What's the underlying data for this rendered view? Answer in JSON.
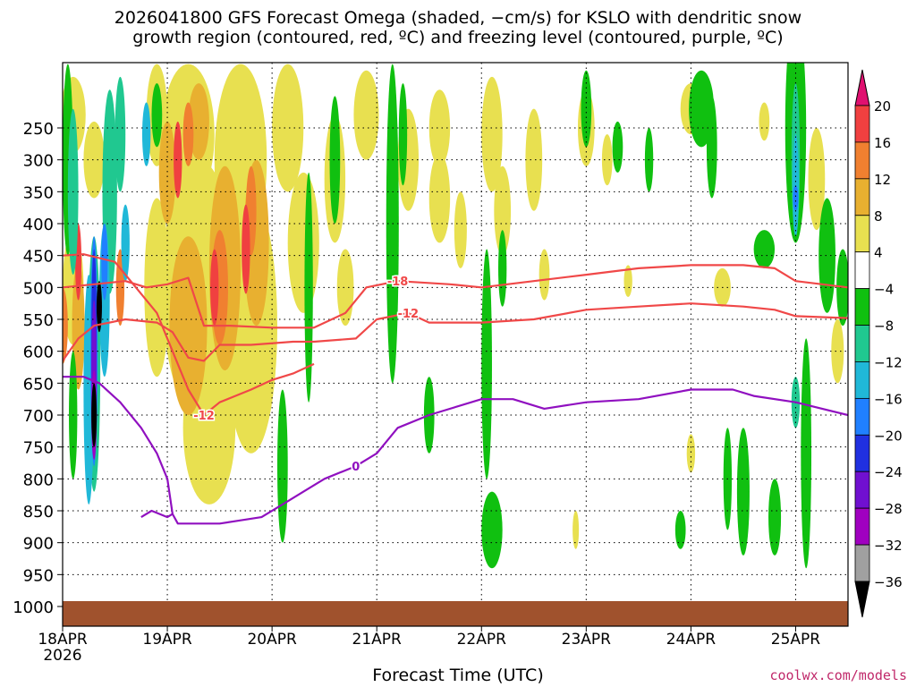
{
  "title_line1": "2026041800 GFS Forecast Omega (shaded, −cm/s) for KSLO with dendritic snow",
  "title_line2": "growth region (contoured, red, ºC) and freezing level (contoured, purple, ºC)",
  "credit": "coolwx.com/models",
  "chart_data": {
    "type": "heatmap",
    "xlabel": "Forecast Time (UTC)",
    "ylabel": "",
    "x_ticks": [
      "18APR",
      "19APR",
      "20APR",
      "21APR",
      "22APR",
      "23APR",
      "24APR",
      "25APR"
    ],
    "x_tick_sublabel": "2026",
    "xlim_days": [
      18,
      25.5
    ],
    "y_ticks": [
      250,
      300,
      350,
      400,
      450,
      500,
      550,
      600,
      650,
      700,
      750,
      800,
      850,
      900,
      950,
      1000
    ],
    "ylim": [
      200,
      1020
    ],
    "colorbar": {
      "labels": [
        "20",
        "16",
        "12",
        "8",
        "4",
        "−4",
        "−8",
        "−12",
        "−16",
        "−20",
        "−24",
        "−28",
        "−32",
        "−36"
      ],
      "colors": [
        "#e01070",
        "#f04040",
        "#f08030",
        "#e8b030",
        "#e8e050",
        "#ffffff",
        "#10c010",
        "#20c890",
        "#20b8d8",
        "#2080ff",
        "#2030e0",
        "#7010d0",
        "#a000c0",
        "#a0a0a0",
        "#000000"
      ]
    },
    "contours": [
      {
        "label": "-18",
        "color": "#f04848",
        "points": [
          [
            18.0,
            500
          ],
          [
            18.3,
            495
          ],
          [
            18.6,
            490
          ],
          [
            18.8,
            500
          ],
          [
            19.0,
            495
          ],
          [
            19.2,
            485
          ],
          [
            19.35,
            560
          ],
          [
            19.6,
            560
          ],
          [
            20.0,
            563
          ],
          [
            20.4,
            563
          ],
          [
            20.7,
            540
          ],
          [
            20.9,
            500
          ],
          [
            21.2,
            490
          ],
          [
            21.7,
            495
          ],
          [
            22.0,
            500
          ],
          [
            22.5,
            490
          ],
          [
            23.0,
            480
          ],
          [
            23.5,
            470
          ],
          [
            24.0,
            465
          ],
          [
            24.5,
            465
          ],
          [
            24.8,
            470
          ],
          [
            25.0,
            490
          ],
          [
            25.5,
            500
          ]
        ]
      },
      {
        "label": "-12",
        "color": "#f04848",
        "points": [
          [
            18.0,
            615
          ],
          [
            18.15,
            580
          ],
          [
            18.3,
            560
          ],
          [
            18.6,
            550
          ],
          [
            18.9,
            555
          ],
          [
            19.05,
            570
          ],
          [
            19.2,
            610
          ],
          [
            19.35,
            615
          ],
          [
            19.5,
            590
          ],
          [
            19.8,
            590
          ],
          [
            20.2,
            585
          ],
          [
            20.4,
            585
          ],
          [
            20.8,
            580
          ],
          [
            21.0,
            550
          ],
          [
            21.3,
            540
          ],
          [
            21.5,
            555
          ],
          [
            21.7,
            555
          ],
          [
            22.0,
            555
          ],
          [
            22.5,
            550
          ],
          [
            23.0,
            535
          ],
          [
            23.5,
            530
          ],
          [
            24.0,
            525
          ],
          [
            24.5,
            530
          ],
          [
            24.8,
            535
          ],
          [
            25.0,
            545
          ],
          [
            25.5,
            548
          ]
        ]
      },
      {
        "label": "-12",
        "color": "#f04848",
        "points": [
          [
            18.0,
            450
          ],
          [
            18.2,
            448
          ],
          [
            18.5,
            460
          ],
          [
            18.7,
            500
          ],
          [
            18.9,
            540
          ],
          [
            19.05,
            600
          ],
          [
            19.2,
            660
          ],
          [
            19.35,
            700
          ],
          [
            19.5,
            680
          ],
          [
            19.8,
            660
          ],
          [
            20.0,
            645
          ],
          [
            20.2,
            635
          ],
          [
            20.4,
            620
          ]
        ]
      },
      {
        "label": "0",
        "color": "#9010c0",
        "points": [
          [
            18.0,
            640
          ],
          [
            18.2,
            640
          ],
          [
            18.35,
            650
          ],
          [
            18.55,
            680
          ],
          [
            18.75,
            720
          ],
          [
            18.9,
            760
          ],
          [
            19.0,
            800
          ],
          [
            19.05,
            855
          ],
          [
            19.1,
            870
          ],
          [
            19.3,
            870
          ],
          [
            19.5,
            870
          ],
          [
            19.7,
            865
          ],
          [
            19.9,
            860
          ],
          [
            20.1,
            840
          ],
          [
            20.3,
            820
          ],
          [
            20.5,
            800
          ],
          [
            20.8,
            780
          ],
          [
            21.0,
            760
          ],
          [
            21.2,
            720
          ],
          [
            21.5,
            700
          ],
          [
            22.0,
            675
          ],
          [
            22.3,
            675
          ],
          [
            22.6,
            690
          ],
          [
            23.0,
            680
          ],
          [
            23.5,
            675
          ],
          [
            24.0,
            660
          ],
          [
            24.4,
            660
          ],
          [
            24.6,
            670
          ],
          [
            25.0,
            680
          ],
          [
            25.5,
            700
          ]
        ]
      },
      {
        "label": "",
        "color": "#9010c0",
        "points": [
          [
            18.75,
            860
          ],
          [
            18.85,
            850
          ],
          [
            19.0,
            860
          ],
          [
            19.05,
            855
          ]
        ]
      }
    ]
  }
}
